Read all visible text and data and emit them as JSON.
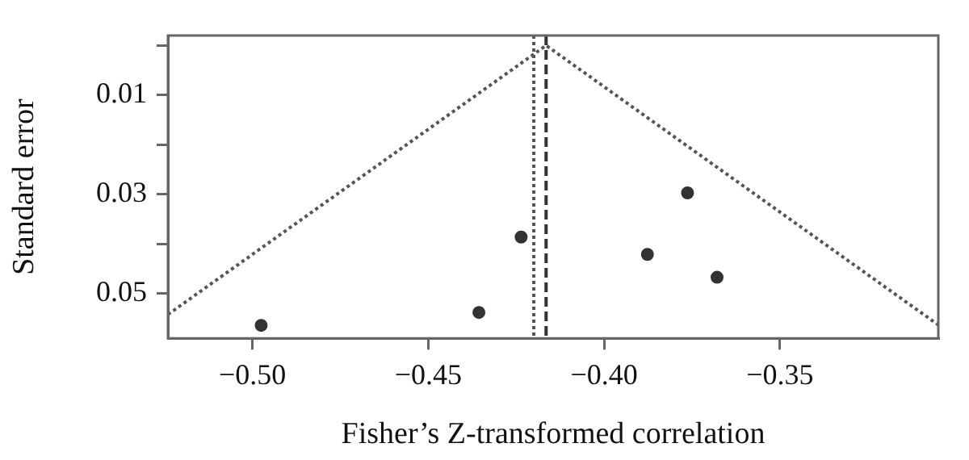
{
  "chart_data": {
    "type": "scatter",
    "xlabel": "Fisher’s Z-transformed correlation",
    "ylabel": "Standard error",
    "xlim": [
      -0.524,
      -0.305
    ],
    "xticks": [
      {
        "value": -0.5,
        "label": "−0.50"
      },
      {
        "value": -0.45,
        "label": "−0.45"
      },
      {
        "value": -0.4,
        "label": "−0.40"
      },
      {
        "value": -0.35,
        "label": "−0.35"
      }
    ],
    "ylim": [
      0.059,
      -0.002
    ],
    "yticks": [
      {
        "value": 0,
        "label": null
      },
      0.01,
      {
        "value": 0.02,
        "label": null
      },
      0.03,
      {
        "value": 0.04,
        "label": null
      },
      0.05
    ],
    "grid": false,
    "legend": false,
    "series": [
      {
        "type": "scatter",
        "color": "#333333",
        "marker": "circle",
        "x": [
          -0.4975,
          -0.4356,
          -0.4236,
          -0.3877,
          -0.3763,
          -0.3679
        ],
        "values": [
          0.0564,
          0.0538,
          0.0386,
          0.0421,
          0.0297,
          0.0467
        ]
      },
      {
        "type": "line",
        "color": "#555555",
        "marker": "none",
        "line_style": "dotted",
        "x": [
          -0.524,
          -0.4165,
          -0.305
        ],
        "values": [
          0.0542,
          0,
          0.0563
        ]
      }
    ],
    "ref_lines": [
      {
        "axis": "x",
        "value": -0.4165,
        "color": "#333333",
        "line_style": "dashed"
      },
      {
        "axis": "x",
        "value": -0.42,
        "color": "#555555",
        "line_style": "dotted"
      }
    ]
  }
}
